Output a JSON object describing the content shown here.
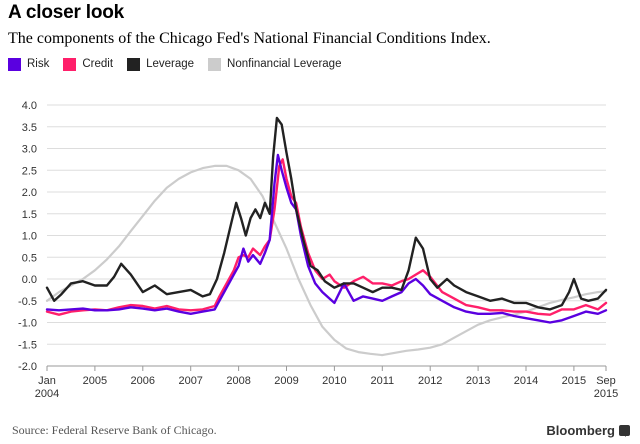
{
  "header": {
    "title": "A closer look",
    "subtitle": "The components of the Chicago Fed's National Financial Conditions Index."
  },
  "footer": {
    "source": "Source: Federal Reserve Bank of Chicago.",
    "brand": "Bloomberg",
    "brand_icon": "bloomberg-logo-icon"
  },
  "chart_data": {
    "type": "line",
    "title": "A closer look",
    "subtitle": "The components of the Chicago Fed's National Financial Conditions Index.",
    "xlabel": "",
    "ylabel": "",
    "xlim": [
      2004.0,
      2015.67
    ],
    "ylim": [
      -2.0,
      4.0
    ],
    "grid": true,
    "legend_position": "top-left",
    "y_ticks": [
      -2.0,
      -1.5,
      -1.0,
      -0.5,
      0.0,
      0.5,
      1.0,
      1.5,
      2.0,
      2.5,
      3.0,
      3.5,
      4.0
    ],
    "y_tick_labels": [
      "-2.0",
      "-1.5",
      "-1.0",
      "-0.5",
      "0.0",
      "0.5",
      "1.0",
      "1.5",
      "2.0",
      "2.5",
      "3.0",
      "3.5",
      "4.0"
    ],
    "x_ticks": [
      {
        "value": 2004.0,
        "line1": "Jan",
        "line2": "2004"
      },
      {
        "value": 2005.0,
        "line1": "2005",
        "line2": ""
      },
      {
        "value": 2006.0,
        "line1": "2006",
        "line2": ""
      },
      {
        "value": 2007.0,
        "line1": "2007",
        "line2": ""
      },
      {
        "value": 2008.0,
        "line1": "2008",
        "line2": ""
      },
      {
        "value": 2009.0,
        "line1": "2009",
        "line2": ""
      },
      {
        "value": 2010.0,
        "line1": "2010",
        "line2": ""
      },
      {
        "value": 2011.0,
        "line1": "2011",
        "line2": ""
      },
      {
        "value": 2012.0,
        "line1": "2012",
        "line2": ""
      },
      {
        "value": 2013.0,
        "line1": "2013",
        "line2": ""
      },
      {
        "value": 2014.0,
        "line1": "2014",
        "line2": ""
      },
      {
        "value": 2015.0,
        "line1": "2015",
        "line2": ""
      },
      {
        "value": 2015.67,
        "line1": "Sep",
        "line2": "2015"
      }
    ],
    "series": [
      {
        "name": "Nonfinancial Leverage",
        "color": "#cccccc",
        "x": [
          2004.0,
          2004.25,
          2004.5,
          2004.75,
          2005.0,
          2005.25,
          2005.5,
          2005.75,
          2006.0,
          2006.25,
          2006.5,
          2006.75,
          2007.0,
          2007.25,
          2007.5,
          2007.75,
          2008.0,
          2008.25,
          2008.5,
          2008.75,
          2009.0,
          2009.25,
          2009.5,
          2009.75,
          2010.0,
          2010.25,
          2010.5,
          2010.75,
          2011.0,
          2011.25,
          2011.5,
          2011.75,
          2012.0,
          2012.25,
          2012.5,
          2012.75,
          2013.0,
          2013.25,
          2013.5,
          2013.75,
          2014.0,
          2014.25,
          2014.5,
          2014.75,
          2015.0,
          2015.25,
          2015.5,
          2015.67
        ],
        "values": [
          -0.5,
          -0.3,
          -0.15,
          0.0,
          0.2,
          0.45,
          0.75,
          1.1,
          1.45,
          1.8,
          2.1,
          2.3,
          2.45,
          2.55,
          2.6,
          2.6,
          2.5,
          2.3,
          1.9,
          1.3,
          0.7,
          0.0,
          -0.6,
          -1.1,
          -1.4,
          -1.6,
          -1.68,
          -1.72,
          -1.75,
          -1.7,
          -1.65,
          -1.62,
          -1.58,
          -1.5,
          -1.35,
          -1.2,
          -1.05,
          -0.95,
          -0.88,
          -0.82,
          -0.75,
          -0.65,
          -0.55,
          -0.48,
          -0.42,
          -0.35,
          -0.3,
          -0.28
        ]
      },
      {
        "name": "Credit",
        "color": "#ff1f6a",
        "x": [
          2004.0,
          2004.25,
          2004.5,
          2004.75,
          2005.0,
          2005.25,
          2005.5,
          2005.75,
          2006.0,
          2006.25,
          2006.5,
          2006.75,
          2007.0,
          2007.25,
          2007.5,
          2007.6,
          2007.75,
          2007.9,
          2008.0,
          2008.1,
          2008.2,
          2008.3,
          2008.45,
          2008.55,
          2008.65,
          2008.75,
          2008.85,
          2008.92,
          2009.0,
          2009.1,
          2009.2,
          2009.3,
          2009.45,
          2009.6,
          2009.75,
          2009.9,
          2010.0,
          2010.2,
          2010.4,
          2010.6,
          2010.8,
          2011.0,
          2011.2,
          2011.4,
          2011.55,
          2011.7,
          2011.85,
          2012.0,
          2012.25,
          2012.5,
          2012.75,
          2013.0,
          2013.25,
          2013.5,
          2013.75,
          2014.0,
          2014.25,
          2014.5,
          2014.75,
          2015.0,
          2015.25,
          2015.5,
          2015.67
        ],
        "values": [
          -0.75,
          -0.82,
          -0.75,
          -0.72,
          -0.7,
          -0.72,
          -0.65,
          -0.6,
          -0.62,
          -0.68,
          -0.62,
          -0.7,
          -0.72,
          -0.7,
          -0.62,
          -0.4,
          -0.1,
          0.2,
          0.5,
          0.55,
          0.5,
          0.7,
          0.55,
          0.75,
          0.9,
          1.6,
          2.6,
          2.75,
          2.3,
          1.9,
          1.75,
          1.2,
          0.6,
          0.2,
          0.0,
          0.1,
          -0.05,
          -0.2,
          -0.05,
          0.05,
          -0.1,
          -0.1,
          -0.15,
          -0.05,
          0.0,
          0.1,
          0.2,
          0.05,
          -0.3,
          -0.45,
          -0.6,
          -0.65,
          -0.72,
          -0.72,
          -0.75,
          -0.75,
          -0.8,
          -0.82,
          -0.7,
          -0.7,
          -0.6,
          -0.7,
          -0.55
        ]
      },
      {
        "name": "Risk",
        "color": "#5a00e0",
        "x": [
          2004.0,
          2004.25,
          2004.5,
          2004.75,
          2005.0,
          2005.25,
          2005.5,
          2005.75,
          2006.0,
          2006.25,
          2006.5,
          2006.75,
          2007.0,
          2007.25,
          2007.5,
          2007.6,
          2007.75,
          2007.9,
          2008.0,
          2008.1,
          2008.2,
          2008.3,
          2008.45,
          2008.55,
          2008.65,
          2008.75,
          2008.82,
          2008.9,
          2009.0,
          2009.1,
          2009.2,
          2009.3,
          2009.45,
          2009.6,
          2009.75,
          2009.9,
          2010.0,
          2010.2,
          2010.4,
          2010.6,
          2010.8,
          2011.0,
          2011.2,
          2011.4,
          2011.55,
          2011.7,
          2011.85,
          2012.0,
          2012.25,
          2012.5,
          2012.75,
          2013.0,
          2013.25,
          2013.5,
          2013.75,
          2014.0,
          2014.25,
          2014.5,
          2014.75,
          2015.0,
          2015.25,
          2015.5,
          2015.67
        ],
        "values": [
          -0.7,
          -0.72,
          -0.7,
          -0.68,
          -0.72,
          -0.72,
          -0.7,
          -0.65,
          -0.68,
          -0.72,
          -0.68,
          -0.75,
          -0.8,
          -0.75,
          -0.7,
          -0.5,
          -0.2,
          0.1,
          0.3,
          0.7,
          0.4,
          0.55,
          0.35,
          0.6,
          0.9,
          2.2,
          2.85,
          2.5,
          2.1,
          1.75,
          1.6,
          1.0,
          0.3,
          -0.1,
          -0.3,
          -0.45,
          -0.55,
          -0.1,
          -0.5,
          -0.4,
          -0.45,
          -0.5,
          -0.4,
          -0.3,
          -0.1,
          0.0,
          -0.15,
          -0.35,
          -0.5,
          -0.65,
          -0.75,
          -0.8,
          -0.8,
          -0.78,
          -0.85,
          -0.9,
          -0.95,
          -1.0,
          -0.95,
          -0.85,
          -0.75,
          -0.8,
          -0.72
        ]
      },
      {
        "name": "Leverage",
        "color": "#222222",
        "x": [
          2004.0,
          2004.15,
          2004.3,
          2004.5,
          2004.75,
          2005.0,
          2005.25,
          2005.4,
          2005.55,
          2005.75,
          2006.0,
          2006.25,
          2006.5,
          2006.75,
          2007.0,
          2007.25,
          2007.4,
          2007.55,
          2007.7,
          2007.85,
          2007.95,
          2008.05,
          2008.15,
          2008.25,
          2008.35,
          2008.45,
          2008.55,
          2008.65,
          2008.72,
          2008.8,
          2008.9,
          2009.0,
          2009.1,
          2009.2,
          2009.35,
          2009.5,
          2009.65,
          2009.8,
          2010.0,
          2010.2,
          2010.4,
          2010.6,
          2010.8,
          2011.0,
          2011.2,
          2011.4,
          2011.55,
          2011.7,
          2011.85,
          2012.0,
          2012.15,
          2012.35,
          2012.5,
          2012.75,
          2013.0,
          2013.25,
          2013.5,
          2013.75,
          2014.0,
          2014.25,
          2014.5,
          2014.75,
          2014.9,
          2015.0,
          2015.15,
          2015.3,
          2015.5,
          2015.67
        ],
        "values": [
          -0.2,
          -0.5,
          -0.35,
          -0.1,
          -0.05,
          -0.15,
          -0.15,
          0.05,
          0.35,
          0.1,
          -0.3,
          -0.15,
          -0.35,
          -0.3,
          -0.25,
          -0.4,
          -0.35,
          0.0,
          0.6,
          1.3,
          1.75,
          1.4,
          1.0,
          1.4,
          1.6,
          1.4,
          1.75,
          1.5,
          2.8,
          3.7,
          3.55,
          2.9,
          2.3,
          1.6,
          0.9,
          0.3,
          0.2,
          -0.05,
          -0.2,
          -0.1,
          -0.1,
          -0.2,
          -0.3,
          -0.2,
          -0.2,
          -0.25,
          0.2,
          0.95,
          0.7,
          0.0,
          -0.2,
          0.0,
          -0.15,
          -0.3,
          -0.4,
          -0.5,
          -0.45,
          -0.55,
          -0.55,
          -0.65,
          -0.7,
          -0.6,
          -0.3,
          0.0,
          -0.45,
          -0.5,
          -0.45,
          -0.25
        ]
      }
    ],
    "legend": [
      {
        "name": "Risk",
        "color": "#5a00e0"
      },
      {
        "name": "Credit",
        "color": "#ff1f6a"
      },
      {
        "name": "Leverage",
        "color": "#222222"
      },
      {
        "name": "Nonfinancial Leverage",
        "color": "#cccccc"
      }
    ]
  }
}
